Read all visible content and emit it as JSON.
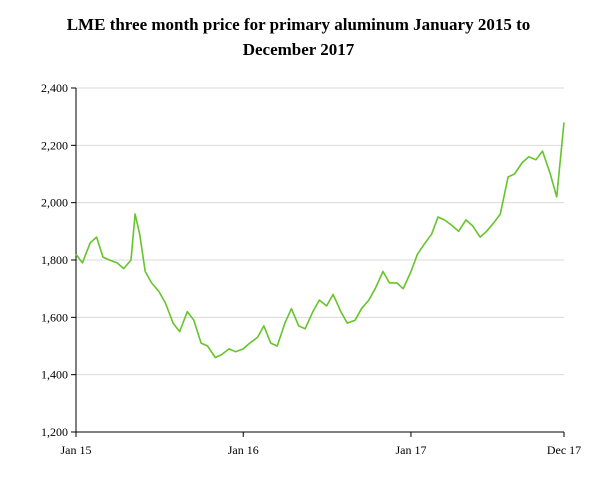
{
  "chart_data": {
    "type": "line",
    "title_lines": [
      "LME three month price for primary aluminum January 2015 to",
      "December 2017"
    ],
    "xlabel": "",
    "ylabel": "",
    "ylim": [
      1200,
      2400
    ],
    "xlim": [
      "2015-01",
      "2017-12"
    ],
    "grid": "horizontal",
    "legend": "none",
    "yticks": [
      1200,
      1400,
      1600,
      1800,
      2000,
      2200,
      2400
    ],
    "ytick_labels": [
      "1,200",
      "1,400",
      "1,600",
      "1,800",
      "2,000",
      "2,200",
      "2,400"
    ],
    "xticks": [
      "2015-01",
      "2016-01",
      "2017-01",
      "2017-12"
    ],
    "xtick_labels": [
      "Jan 15",
      "Jan 16",
      "Jan 17",
      "Dec 17"
    ],
    "series": [
      {
        "color": "#66c42a",
        "x": [
          "2015-01",
          "2015-01-15",
          "2015-02",
          "2015-02-15",
          "2015-03",
          "2015-03-15",
          "2015-04",
          "2015-04-15",
          "2015-05",
          "2015-05-10",
          "2015-05-20",
          "2015-06",
          "2015-06-15",
          "2015-07",
          "2015-07-15",
          "2015-08",
          "2015-08-15",
          "2015-09",
          "2015-09-15",
          "2015-10",
          "2015-10-15",
          "2015-11",
          "2015-11-15",
          "2015-12",
          "2015-12-15",
          "2016-01",
          "2016-01-15",
          "2016-02",
          "2016-02-15",
          "2016-03",
          "2016-03-15",
          "2016-04",
          "2016-04-15",
          "2016-05",
          "2016-05-15",
          "2016-06",
          "2016-06-15",
          "2016-07",
          "2016-07-15",
          "2016-08",
          "2016-08-15",
          "2016-09",
          "2016-09-15",
          "2016-10",
          "2016-10-15",
          "2016-11",
          "2016-11-15",
          "2016-12",
          "2016-12-15",
          "2017-01",
          "2017-01-15",
          "2017-02",
          "2017-02-15",
          "2017-03",
          "2017-03-15",
          "2017-04",
          "2017-04-15",
          "2017-05",
          "2017-05-15",
          "2017-06",
          "2017-06-15",
          "2017-07",
          "2017-07-15",
          "2017-08",
          "2017-08-15",
          "2017-09",
          "2017-09-15",
          "2017-10",
          "2017-10-15",
          "2017-11",
          "2017-11-15",
          "2017-12"
        ],
        "values": [
          1820,
          1790,
          1860,
          1880,
          1810,
          1800,
          1790,
          1770,
          1800,
          1960,
          1890,
          1760,
          1720,
          1690,
          1650,
          1580,
          1550,
          1620,
          1590,
          1510,
          1500,
          1460,
          1470,
          1490,
          1480,
          1490,
          1510,
          1530,
          1570,
          1510,
          1500,
          1580,
          1630,
          1570,
          1560,
          1620,
          1660,
          1640,
          1680,
          1620,
          1580,
          1590,
          1630,
          1660,
          1700,
          1760,
          1720,
          1720,
          1700,
          1760,
          1820,
          1860,
          1890,
          1950,
          1940,
          1920,
          1900,
          1940,
          1920,
          1880,
          1900,
          1930,
          1960,
          2090,
          2100,
          2140,
          2160,
          2150,
          2180,
          2100,
          2020,
          2280
        ]
      }
    ]
  }
}
